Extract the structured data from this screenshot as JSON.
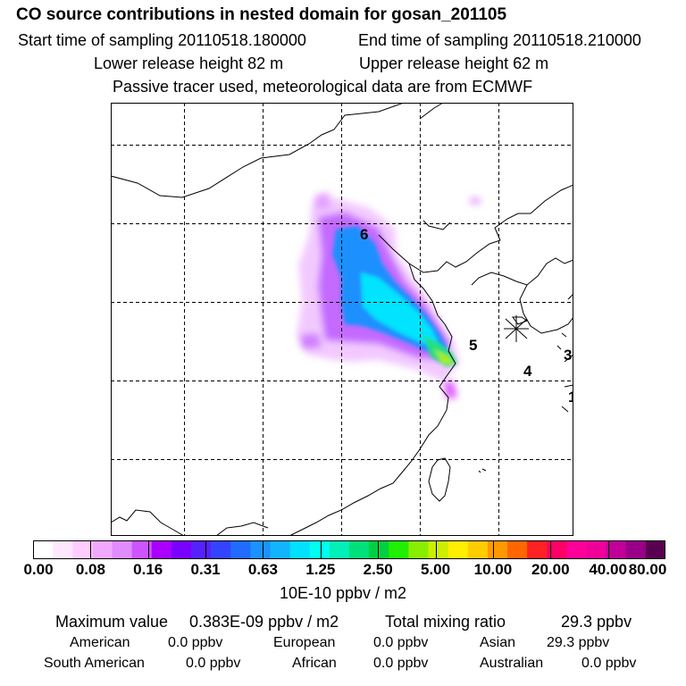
{
  "header": {
    "title": "CO  source contributions in nested domain for gosan_201105",
    "start_label": "Start time of sampling 20110518.180000",
    "end_label": "End time of sampling 20110518.210000",
    "lower_label": "Lower release height   82 m",
    "upper_label": "Upper release height   62 m",
    "note": "Passive tracer used, meteorological data are from ECMWF"
  },
  "map": {
    "markers": [
      "6",
      "5",
      "4",
      "3",
      "1"
    ]
  },
  "colorbar": {
    "colors": [
      "#ffffff",
      "#ffe8ff",
      "#ffcdff",
      "#f2a8ff",
      "#e08cff",
      "#cc55ff",
      "#aa00ff",
      "#7a00ff",
      "#5522ff",
      "#3344ff",
      "#1f6cff",
      "#1a92ff",
      "#12b4ff",
      "#00e0ff",
      "#00ffee",
      "#00f0b8",
      "#00e07a",
      "#00d040",
      "#22ee00",
      "#88ee00",
      "#ccee00",
      "#ffee00",
      "#ffcc00",
      "#ff9900",
      "#ff6600",
      "#ff2222",
      "#ff0066",
      "#ff0099",
      "#ee0099",
      "#c00099",
      "#990088",
      "#5a0050"
    ],
    "tick_labels": [
      "0.00",
      "0.08",
      "0.16",
      "0.31",
      "0.63",
      "1.25",
      "2.50",
      "5.00",
      "10.00",
      "20.00",
      "40.00",
      "80.00"
    ],
    "units": "10E-10 ppbv / m2"
  },
  "stats": {
    "max_label": "Maximum value",
    "max_value": "0.383E-09 ppbv / m2",
    "total_label": "Total mixing ratio",
    "total_value": "29.3 ppbv",
    "regions": [
      {
        "name": "American",
        "value": "0.0 ppbv"
      },
      {
        "name": "European",
        "value": "0.0 ppbv"
      },
      {
        "name": "Asian",
        "value": "29.3 ppbv"
      },
      {
        "name": "South American",
        "value": "0.0 ppbv"
      },
      {
        "name": "African",
        "value": "0.0 ppbv"
      },
      {
        "name": "Australian",
        "value": "0.0 ppbv"
      }
    ]
  }
}
